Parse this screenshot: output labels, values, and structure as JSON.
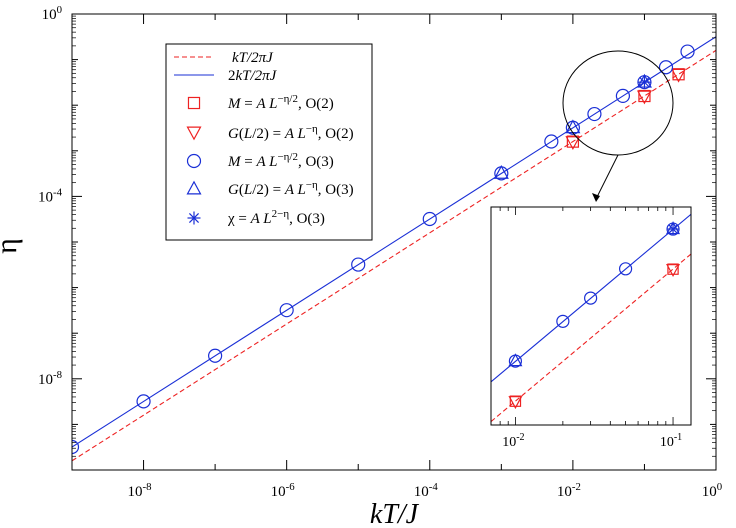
{
  "chart_data": {
    "type": "scatter",
    "xscale": "log",
    "yscale": "log",
    "xlabel": "kT/J",
    "ylabel": "η",
    "xlim": [
      1e-09,
      1
    ],
    "ylim": [
      1e-10,
      1
    ],
    "xticks": [
      {
        "value": 1e-08,
        "base": "10",
        "exp": "-8"
      },
      {
        "value": 1e-06,
        "base": "10",
        "exp": "-6"
      },
      {
        "value": 0.0001,
        "base": "10",
        "exp": "-4"
      },
      {
        "value": 0.01,
        "base": "10",
        "exp": "-2"
      },
      {
        "value": 1,
        "base": "10",
        "exp": "0"
      }
    ],
    "yticks": [
      {
        "value": 1e-08,
        "base": "10",
        "exp": "-8"
      },
      {
        "value": 0.0001,
        "base": "10",
        "exp": "-4"
      },
      {
        "value": 1,
        "base": "10",
        "exp": "0"
      }
    ],
    "lines": [
      {
        "name": "kT/2πJ",
        "coef": 0.1592,
        "color": "#ee2222",
        "dash": true
      },
      {
        "name": "2kT/2πJ",
        "coef": 0.3183,
        "color": "#1a2fd6",
        "dash": false
      }
    ],
    "series": [
      {
        "name": "M = A L^{-η/2}, O(2)",
        "marker": "square",
        "color": "#ee2222",
        "points": [
          [
            0.01,
            0.00159
          ],
          [
            0.1,
            0.0159
          ],
          [
            0.3,
            0.0477
          ]
        ]
      },
      {
        "name": "G(L/2) = A L^{-η}, O(2)",
        "marker": "triangle-down",
        "color": "#ee2222",
        "points": [
          [
            0.01,
            0.00159
          ],
          [
            0.1,
            0.0159
          ],
          [
            0.3,
            0.0477
          ]
        ]
      },
      {
        "name": "M = A L^{-η/2}, O(3)",
        "marker": "circle",
        "color": "#1a2fd6",
        "points": [
          [
            1e-09,
            3.2e-10
          ],
          [
            1e-08,
            3.2e-09
          ],
          [
            1e-07,
            3.2e-08
          ],
          [
            1e-06,
            3.2e-07
          ],
          [
            1e-05,
            3.2e-06
          ],
          [
            0.0001,
            3.2e-05
          ],
          [
            0.001,
            0.00032
          ],
          [
            0.005,
            0.0016
          ],
          [
            0.01,
            0.0032
          ],
          [
            0.02,
            0.0064
          ],
          [
            0.05,
            0.016
          ],
          [
            0.1,
            0.032
          ],
          [
            0.2,
            0.068
          ],
          [
            0.4,
            0.15
          ]
        ]
      },
      {
        "name": "G(L/2) = A L^{-η}, O(3)",
        "marker": "triangle-up",
        "color": "#1a2fd6",
        "points": [
          [
            0.001,
            0.00032
          ],
          [
            0.01,
            0.0032
          ],
          [
            0.1,
            0.032
          ]
        ]
      },
      {
        "name": "χ = A L^{2-η}, O(3)",
        "marker": "asterisk",
        "color": "#1a2fd6",
        "points": [
          [
            0.1,
            0.032
          ]
        ]
      }
    ],
    "legend": {
      "placement": "top-left",
      "entries": [
        {
          "label": "kT/2πJ"
        },
        {
          "label": "2kT/2πJ"
        },
        {
          "label": "M = A L^(−η/2), O(2)"
        },
        {
          "label": "G(L/2) = A L^(−η), O(2)"
        },
        {
          "label": "M = A L^(−η/2), O(3)"
        },
        {
          "label": "G(L/2) = A L^(−η), O(3)"
        },
        {
          "label": "χ = A L^(2−η), O(3)"
        }
      ]
    },
    "inset": {
      "xlim": [
        0.007,
        0.13
      ],
      "ylim": [
        0.00105,
        0.047
      ],
      "xticks": [
        {
          "value": 0.01,
          "base": "10",
          "exp": "-2"
        },
        {
          "value": 0.1,
          "base": "10",
          "exp": "-1"
        }
      ],
      "series": [
        {
          "marker": "circle",
          "color": "#1a2fd6",
          "points": [
            [
              0.01,
              0.0032
            ],
            [
              0.02,
              0.0064
            ],
            [
              0.03,
              0.0096
            ],
            [
              0.05,
              0.016
            ],
            [
              0.1,
              0.032
            ]
          ]
        },
        {
          "marker": "triangle-up",
          "color": "#1a2fd6",
          "points": [
            [
              0.01,
              0.0032
            ],
            [
              0.1,
              0.032
            ]
          ]
        },
        {
          "marker": "asterisk",
          "color": "#1a2fd6",
          "points": [
            [
              0.1,
              0.032
            ]
          ]
        },
        {
          "marker": "square",
          "color": "#ee2222",
          "points": [
            [
              0.01,
              0.00159
            ],
            [
              0.1,
              0.0159
            ]
          ]
        },
        {
          "marker": "triangle-down",
          "color": "#ee2222",
          "points": [
            [
              0.01,
              0.00159
            ],
            [
              0.1,
              0.0159
            ]
          ]
        }
      ]
    }
  }
}
